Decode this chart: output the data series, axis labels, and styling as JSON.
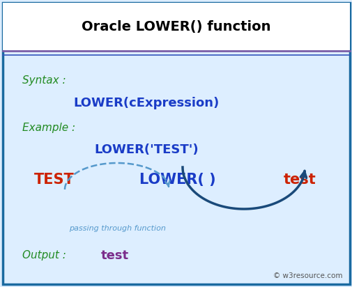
{
  "title": "Oracle LOWER() function",
  "title_color": "#000000",
  "title_fontsize": 14,
  "bg_color": "#ddeeff",
  "border_color": "#1a6aa0",
  "separator_color_top": "#7b5ea7",
  "separator_color_bottom": "#3355bb",
  "syntax_label": "Syntax :",
  "syntax_text": "LOWER(cExpression)",
  "example_label": "Example :",
  "example_text": "LOWER('TEST')",
  "input_text": "TEST",
  "func_text": "LOWER( )",
  "output_text_right": "test",
  "passing_label": "passing through function",
  "output_label": "Output :",
  "output_value": "test",
  "watermark": "© w3resource.com",
  "green_color": "#228B22",
  "blue_color": "#1a3cc7",
  "red_color": "#cc2200",
  "purple_color": "#7b2d8b",
  "dashed_arrow_color": "#5599cc",
  "solid_arrow_color": "#1a4a7a",
  "white_color": "#ffffff"
}
